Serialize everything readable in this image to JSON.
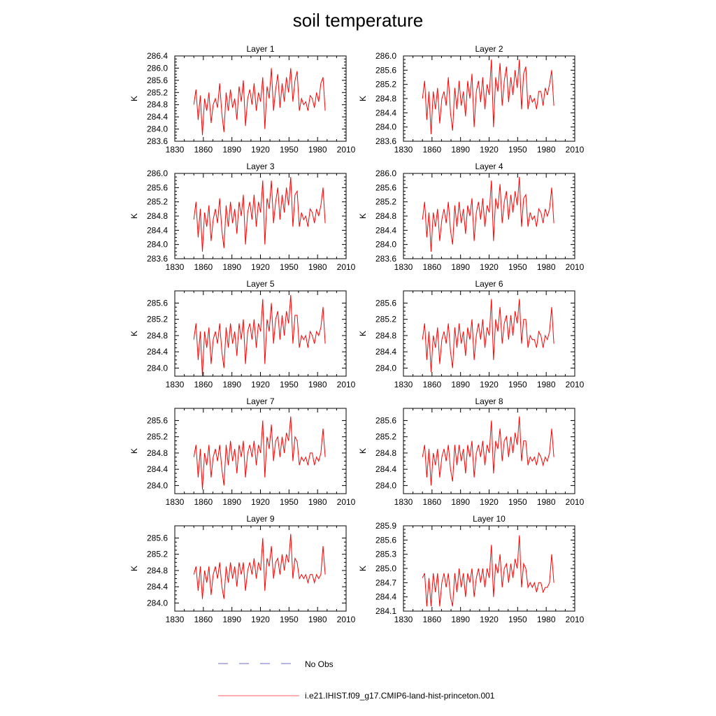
{
  "title": "soil temperature",
  "line_color": "#ff0000",
  "legend": {
    "items": [
      {
        "label": "No Obs",
        "style": "dashed",
        "color": "#6b6bc8"
      },
      {
        "label": "i.e21.IHIST.f09_g17.CMIP6-land-hist-princeton.001",
        "style": "solid",
        "color": "#ff6060"
      }
    ]
  },
  "chart_data": [
    {
      "type": "line",
      "title": "Layer 1",
      "ylabel": "K",
      "xlim": [
        1830,
        2010
      ],
      "ylim": [
        283.6,
        286.4
      ],
      "xticks": [
        1830,
        1860,
        1890,
        1920,
        1950,
        1980,
        2010
      ],
      "yticks": [
        "283.6",
        "284.0",
        "284.4",
        "284.8",
        "285.2",
        "285.6",
        "286.0",
        "286.4"
      ],
      "x_start": 1850,
      "x_end": 1988,
      "series": [
        {
          "values": [
            284.8,
            285.3,
            284.3,
            285.1,
            283.8,
            285.0,
            284.6,
            285.2,
            284.2,
            284.8,
            285.0,
            284.7,
            285.5,
            284.5,
            283.9,
            285.2,
            284.6,
            285.3,
            284.7,
            285.0,
            284.3,
            285.4,
            284.9,
            285.6,
            284.1,
            285.0,
            285.3,
            284.8,
            285.5,
            284.6,
            285.2,
            284.9,
            285.7,
            284.0,
            285.4,
            285.0,
            286.0,
            284.6,
            285.3,
            285.8,
            284.7,
            285.5,
            284.9,
            285.7,
            285.2,
            286.0,
            284.9,
            285.6,
            285.9,
            284.6,
            285.0,
            284.8,
            284.9,
            284.6,
            285.1,
            285.0,
            284.7,
            285.2,
            284.9,
            285.5,
            285.7,
            284.6
          ]
        }
      ]
    },
    {
      "type": "line",
      "title": "Layer 2",
      "ylabel": "K",
      "xlim": [
        1830,
        2010
      ],
      "ylim": [
        283.6,
        286.0
      ],
      "xticks": [
        1830,
        1860,
        1890,
        1920,
        1950,
        1980,
        2010
      ],
      "yticks": [
        "283.6",
        "284.0",
        "284.4",
        "284.8",
        "285.2",
        "285.6",
        "286.0"
      ],
      "x_start": 1850,
      "x_end": 1988,
      "series": [
        {
          "values": [
            284.8,
            285.3,
            284.2,
            285.0,
            283.8,
            285.0,
            284.5,
            285.1,
            284.1,
            284.8,
            285.0,
            284.6,
            285.4,
            284.4,
            283.9,
            285.1,
            284.5,
            285.3,
            284.6,
            285.0,
            284.3,
            285.3,
            284.8,
            285.5,
            284.0,
            285.0,
            285.3,
            284.7,
            285.4,
            284.5,
            285.2,
            284.9,
            285.9,
            284.0,
            285.4,
            285.0,
            285.8,
            284.6,
            285.3,
            285.7,
            284.7,
            285.4,
            284.9,
            285.6,
            285.1,
            285.9,
            284.5,
            285.5,
            285.7,
            284.5,
            284.9,
            284.7,
            284.8,
            284.5,
            285.0,
            285.0,
            284.6,
            285.1,
            284.9,
            285.2,
            285.6,
            284.6
          ]
        }
      ]
    },
    {
      "type": "line",
      "title": "Layer 3",
      "ylabel": "K",
      "xlim": [
        1830,
        2010
      ],
      "ylim": [
        283.6,
        286.0
      ],
      "xticks": [
        1830,
        1860,
        1890,
        1920,
        1950,
        1980,
        2010
      ],
      "yticks": [
        "283.6",
        "284.0",
        "284.4",
        "284.8",
        "285.2",
        "285.6",
        "286.0"
      ],
      "x_start": 1850,
      "x_end": 1988,
      "series": [
        {
          "values": [
            284.7,
            285.2,
            284.2,
            285.0,
            283.8,
            284.9,
            284.5,
            285.1,
            284.1,
            284.7,
            285.0,
            284.6,
            285.3,
            284.4,
            283.9,
            285.1,
            284.5,
            285.2,
            284.6,
            285.0,
            284.3,
            285.2,
            284.8,
            285.4,
            284.0,
            284.9,
            285.2,
            284.7,
            285.4,
            284.5,
            285.2,
            284.9,
            285.8,
            284.0,
            285.3,
            285.0,
            285.8,
            284.6,
            285.2,
            285.6,
            284.7,
            285.4,
            284.9,
            285.6,
            285.1,
            285.9,
            284.5,
            285.4,
            285.5,
            284.5,
            284.9,
            284.7,
            284.8,
            284.5,
            285.0,
            284.9,
            284.6,
            285.0,
            284.8,
            285.1,
            285.6,
            284.6
          ]
        }
      ]
    },
    {
      "type": "line",
      "title": "Layer 4",
      "ylabel": "K",
      "xlim": [
        1830,
        2010
      ],
      "ylim": [
        283.6,
        286.0
      ],
      "xticks": [
        1830,
        1860,
        1890,
        1920,
        1950,
        1980,
        2010
      ],
      "yticks": [
        "283.6",
        "284.0",
        "284.4",
        "284.8",
        "285.2",
        "285.6",
        "286.0"
      ],
      "x_start": 1850,
      "x_end": 1988,
      "series": [
        {
          "values": [
            284.7,
            285.2,
            284.2,
            284.9,
            283.8,
            284.9,
            284.5,
            285.0,
            284.1,
            284.7,
            285.0,
            284.6,
            285.2,
            284.4,
            284.0,
            285.1,
            284.5,
            285.2,
            284.6,
            285.0,
            284.3,
            285.1,
            284.8,
            285.3,
            284.1,
            284.9,
            285.2,
            284.7,
            285.3,
            284.5,
            285.1,
            284.9,
            285.8,
            284.1,
            285.3,
            285.0,
            285.7,
            284.6,
            285.2,
            285.5,
            284.7,
            285.4,
            284.9,
            285.5,
            285.1,
            285.9,
            284.5,
            285.3,
            285.4,
            284.5,
            284.9,
            284.7,
            284.8,
            284.5,
            285.0,
            284.9,
            284.6,
            285.0,
            284.8,
            285.0,
            285.6,
            284.6
          ]
        }
      ]
    },
    {
      "type": "line",
      "title": "Layer 5",
      "ylabel": "K",
      "xlim": [
        1830,
        2010
      ],
      "ylim": [
        283.8,
        285.9
      ],
      "xticks": [
        1830,
        1860,
        1890,
        1920,
        1950,
        1980,
        2010
      ],
      "yticks": [
        "284.0",
        "284.4",
        "284.8",
        "285.2",
        "285.6"
      ],
      "x_start": 1850,
      "x_end": 1988,
      "series": [
        {
          "values": [
            284.7,
            285.1,
            284.2,
            284.9,
            283.8,
            284.9,
            284.5,
            285.0,
            284.1,
            284.7,
            284.9,
            284.6,
            285.1,
            284.4,
            284.0,
            285.0,
            284.5,
            285.1,
            284.6,
            284.9,
            284.3,
            285.1,
            284.7,
            285.2,
            284.1,
            284.9,
            285.1,
            284.7,
            285.2,
            284.5,
            285.1,
            284.9,
            285.7,
            284.1,
            285.2,
            284.9,
            285.6,
            284.6,
            285.2,
            285.4,
            284.7,
            285.3,
            284.8,
            285.4,
            285.1,
            285.8,
            284.6,
            285.3,
            285.3,
            284.5,
            284.8,
            284.7,
            284.8,
            284.5,
            284.9,
            284.8,
            284.6,
            284.9,
            284.8,
            285.0,
            285.5,
            284.6
          ]
        }
      ]
    },
    {
      "type": "line",
      "title": "Layer 6",
      "ylabel": "K",
      "xlim": [
        1830,
        2010
      ],
      "ylim": [
        283.8,
        285.9
      ],
      "xticks": [
        1830,
        1860,
        1890,
        1920,
        1950,
        1980,
        2010
      ],
      "yticks": [
        "284.0",
        "284.4",
        "284.8",
        "285.2",
        "285.6"
      ],
      "x_start": 1850,
      "x_end": 1988,
      "series": [
        {
          "values": [
            284.7,
            285.1,
            284.2,
            284.9,
            283.9,
            284.8,
            284.5,
            285.0,
            284.1,
            284.7,
            284.9,
            284.6,
            285.1,
            284.4,
            284.0,
            285.0,
            284.5,
            285.1,
            284.6,
            284.9,
            284.3,
            285.0,
            284.7,
            285.2,
            284.2,
            284.8,
            285.1,
            284.7,
            285.2,
            284.5,
            285.0,
            284.8,
            285.7,
            284.2,
            285.2,
            284.9,
            285.5,
            284.6,
            285.1,
            285.3,
            284.7,
            285.3,
            284.8,
            285.4,
            285.1,
            285.7,
            284.6,
            285.2,
            285.2,
            284.5,
            284.8,
            284.7,
            284.7,
            284.5,
            284.9,
            284.8,
            284.5,
            284.8,
            284.7,
            284.9,
            285.5,
            284.6
          ]
        }
      ]
    },
    {
      "type": "line",
      "title": "Layer 7",
      "ylabel": "K",
      "xlim": [
        1830,
        2010
      ],
      "ylim": [
        283.8,
        285.9
      ],
      "xticks": [
        1830,
        1860,
        1890,
        1920,
        1950,
        1980,
        2010
      ],
      "yticks": [
        "284.0",
        "284.4",
        "284.8",
        "285.2",
        "285.6"
      ],
      "x_start": 1850,
      "x_end": 1988,
      "series": [
        {
          "values": [
            284.7,
            285.0,
            284.2,
            284.9,
            283.9,
            284.8,
            284.5,
            285.0,
            284.2,
            284.7,
            284.9,
            284.6,
            285.0,
            284.4,
            284.0,
            285.0,
            284.5,
            285.1,
            284.6,
            284.9,
            284.3,
            285.0,
            284.7,
            285.1,
            284.2,
            284.8,
            285.0,
            284.7,
            285.1,
            284.5,
            285.0,
            284.8,
            285.6,
            284.2,
            285.2,
            284.9,
            285.5,
            284.6,
            285.1,
            285.2,
            284.7,
            285.2,
            284.8,
            285.3,
            285.1,
            285.7,
            284.6,
            285.2,
            285.1,
            284.5,
            284.7,
            284.6,
            284.7,
            284.5,
            284.8,
            284.8,
            284.5,
            284.7,
            284.6,
            284.8,
            285.4,
            284.7
          ]
        }
      ]
    },
    {
      "type": "line",
      "title": "Layer 8",
      "ylabel": "K",
      "xlim": [
        1830,
        2010
      ],
      "ylim": [
        283.8,
        285.9
      ],
      "xticks": [
        1830,
        1860,
        1890,
        1920,
        1950,
        1980,
        2010
      ],
      "yticks": [
        "284.0",
        "284.4",
        "284.8",
        "285.2",
        "285.6"
      ],
      "x_start": 1850,
      "x_end": 1988,
      "series": [
        {
          "values": [
            284.7,
            285.0,
            284.2,
            284.9,
            284.0,
            284.8,
            284.5,
            284.9,
            284.2,
            284.7,
            284.9,
            284.6,
            285.0,
            284.4,
            284.1,
            285.0,
            284.5,
            285.0,
            284.6,
            284.9,
            284.3,
            285.0,
            284.7,
            285.1,
            284.2,
            284.8,
            285.0,
            284.7,
            285.1,
            284.5,
            285.0,
            284.8,
            285.6,
            284.3,
            285.1,
            284.9,
            285.4,
            284.6,
            285.1,
            285.2,
            284.7,
            285.2,
            284.8,
            285.3,
            285.0,
            285.7,
            284.6,
            285.1,
            285.1,
            284.5,
            284.7,
            284.6,
            284.7,
            284.5,
            284.8,
            284.7,
            284.5,
            284.7,
            284.6,
            284.8,
            285.4,
            284.7
          ]
        }
      ]
    },
    {
      "type": "line",
      "title": "Layer 9",
      "ylabel": "K",
      "xlim": [
        1830,
        2010
      ],
      "ylim": [
        283.8,
        285.9
      ],
      "xticks": [
        1830,
        1860,
        1890,
        1920,
        1950,
        1980,
        2010
      ],
      "yticks": [
        "284.0",
        "284.4",
        "284.8",
        "285.2",
        "285.6"
      ],
      "x_start": 1850,
      "x_end": 1988,
      "series": [
        {
          "values": [
            284.7,
            284.9,
            284.3,
            284.9,
            284.1,
            284.8,
            284.5,
            284.9,
            284.2,
            284.7,
            284.9,
            284.6,
            285.0,
            284.4,
            284.1,
            284.9,
            284.5,
            285.0,
            284.6,
            284.9,
            284.4,
            285.0,
            284.7,
            285.0,
            284.3,
            284.8,
            285.0,
            284.7,
            285.1,
            284.6,
            285.0,
            284.8,
            285.6,
            284.3,
            285.1,
            284.9,
            285.4,
            284.6,
            285.0,
            285.1,
            284.7,
            285.2,
            284.8,
            285.2,
            285.0,
            285.7,
            284.6,
            285.1,
            285.0,
            284.6,
            284.7,
            284.6,
            284.7,
            284.5,
            284.7,
            284.7,
            284.5,
            284.7,
            284.6,
            284.7,
            285.4,
            284.7
          ]
        }
      ]
    },
    {
      "type": "line",
      "title": "Layer 10",
      "ylabel": "K",
      "xlim": [
        1830,
        2010
      ],
      "ylim": [
        284.1,
        285.9
      ],
      "xticks": [
        1830,
        1860,
        1890,
        1920,
        1950,
        1980,
        2010
      ],
      "yticks": [
        "284.1",
        "284.4",
        "284.7",
        "285.0",
        "285.3",
        "285.6",
        "285.9"
      ],
      "x_start": 1850,
      "x_end": 1988,
      "series": [
        {
          "values": [
            284.8,
            284.9,
            284.2,
            284.8,
            284.2,
            284.9,
            284.5,
            284.9,
            284.2,
            284.7,
            284.9,
            284.6,
            284.9,
            284.4,
            284.2,
            284.9,
            284.5,
            285.0,
            284.6,
            284.9,
            284.4,
            284.9,
            284.7,
            285.0,
            284.4,
            284.8,
            285.0,
            284.7,
            285.0,
            284.6,
            285.0,
            284.8,
            285.5,
            284.4,
            285.1,
            284.9,
            285.3,
            284.6,
            285.0,
            285.1,
            284.7,
            285.1,
            284.8,
            285.2,
            285.0,
            285.7,
            284.6,
            285.1,
            285.0,
            284.6,
            284.7,
            284.6,
            284.7,
            284.5,
            284.7,
            284.7,
            284.5,
            284.6,
            284.6,
            284.7,
            285.3,
            284.7
          ]
        }
      ]
    }
  ]
}
